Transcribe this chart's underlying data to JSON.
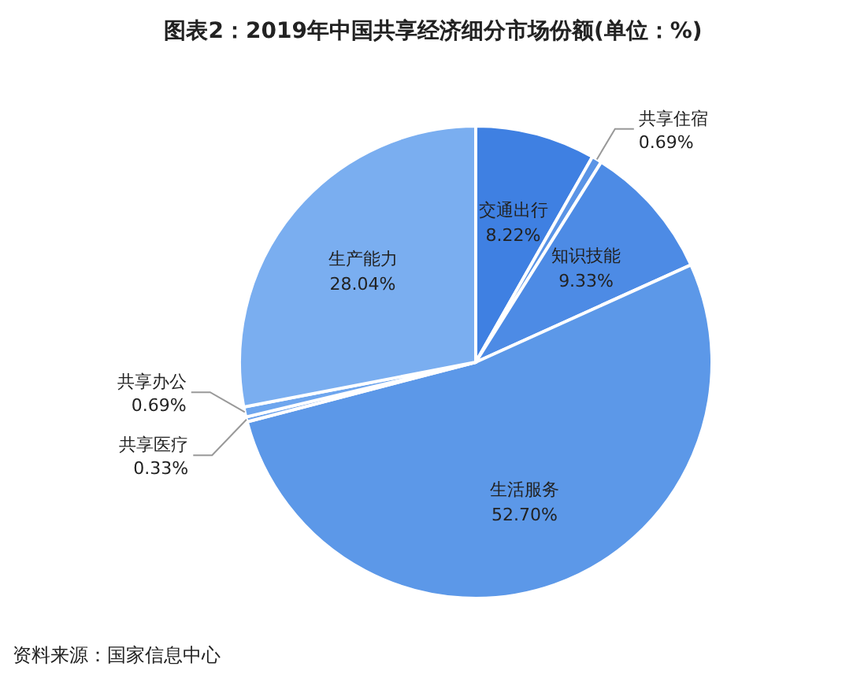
{
  "chart_data": {
    "type": "pie",
    "title": "图表2：2019年中国共享经济细分市场份额(单位：%)",
    "categories": [
      "交通出行",
      "共享住宿",
      "知识技能",
      "生活服务",
      "共享医疗",
      "共享办公",
      "生产能力"
    ],
    "values": [
      8.22,
      0.69,
      9.33,
      52.7,
      0.33,
      0.69,
      28.04
    ],
    "colors": [
      "#3f80e2",
      "#5a94e6",
      "#4d8be5",
      "#5c98e8",
      "#6aa2ec",
      "#6ea6ee",
      "#7aaef0"
    ],
    "value_labels": [
      "8.22%",
      "0.69%",
      "9.33%",
      "52.70%",
      "0.33%",
      "0.69%",
      "28.04%"
    ],
    "annotations": [
      "资料来源：国家信息中心"
    ]
  }
}
